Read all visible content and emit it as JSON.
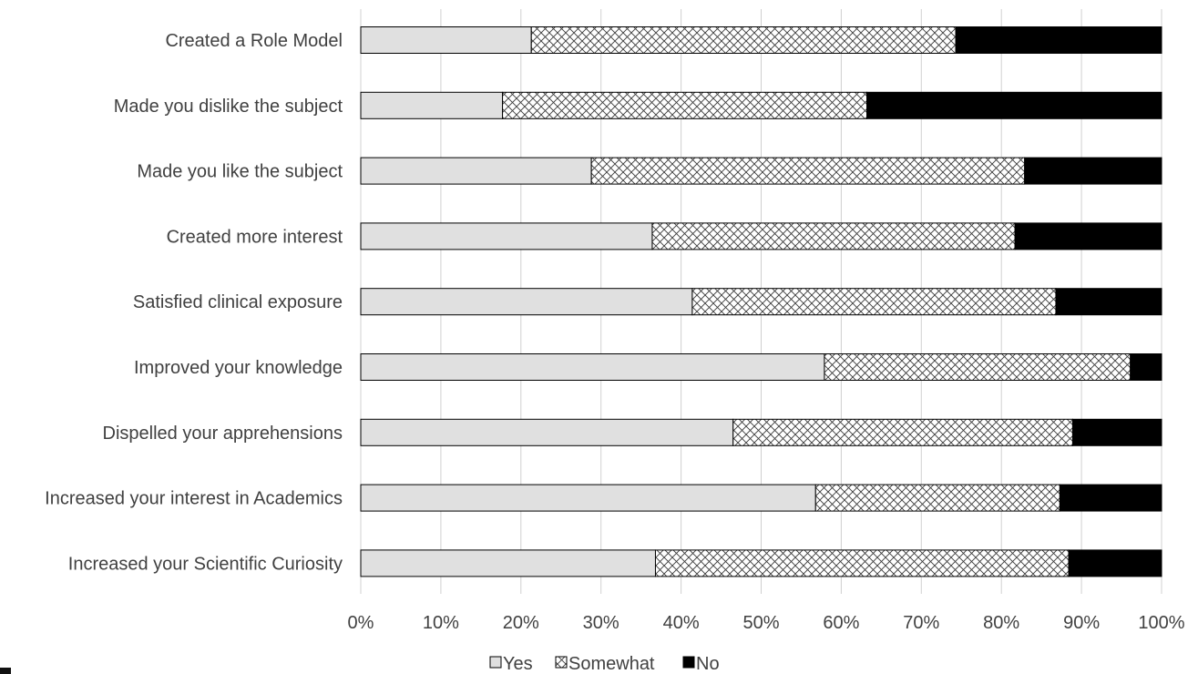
{
  "chart_data": {
    "type": "bar",
    "orientation": "horizontal",
    "stacked": "percent",
    "title": "",
    "xlabel": "",
    "ylabel": "",
    "categories": [
      "Created a Role Model",
      "Made you dislike the subject",
      "Made you like the subject",
      "Created more interest",
      "Satisfied clinical exposure",
      "Improved your knowledge",
      "Dispelled your apprehensions",
      "Increased your interest in Academics",
      "Increased your Scientific Curiosity"
    ],
    "series": [
      {
        "name": "Yes",
        "color": "#e0e0e0",
        "pattern": "solid",
        "values": [
          21.3,
          17.7,
          28.8,
          36.4,
          41.4,
          57.9,
          46.5,
          56.8,
          36.8
        ]
      },
      {
        "name": "Somewhat",
        "color": "#ffffff",
        "pattern": "crosshatch",
        "values": [
          53.0,
          45.5,
          54.1,
          45.3,
          45.4,
          38.2,
          42.4,
          30.5,
          51.6
        ]
      },
      {
        "name": "No",
        "color": "#000000",
        "pattern": "solid",
        "values": [
          25.7,
          36.8,
          17.1,
          18.3,
          13.2,
          3.9,
          11.1,
          12.7,
          11.6
        ]
      }
    ],
    "xlim": [
      0,
      100
    ],
    "xticks": [
      "0%",
      "10%",
      "20%",
      "30%",
      "40%",
      "50%",
      "60%",
      "70%",
      "80%",
      "90%",
      "100%"
    ],
    "grid": "vertical",
    "legend": "bottom"
  }
}
